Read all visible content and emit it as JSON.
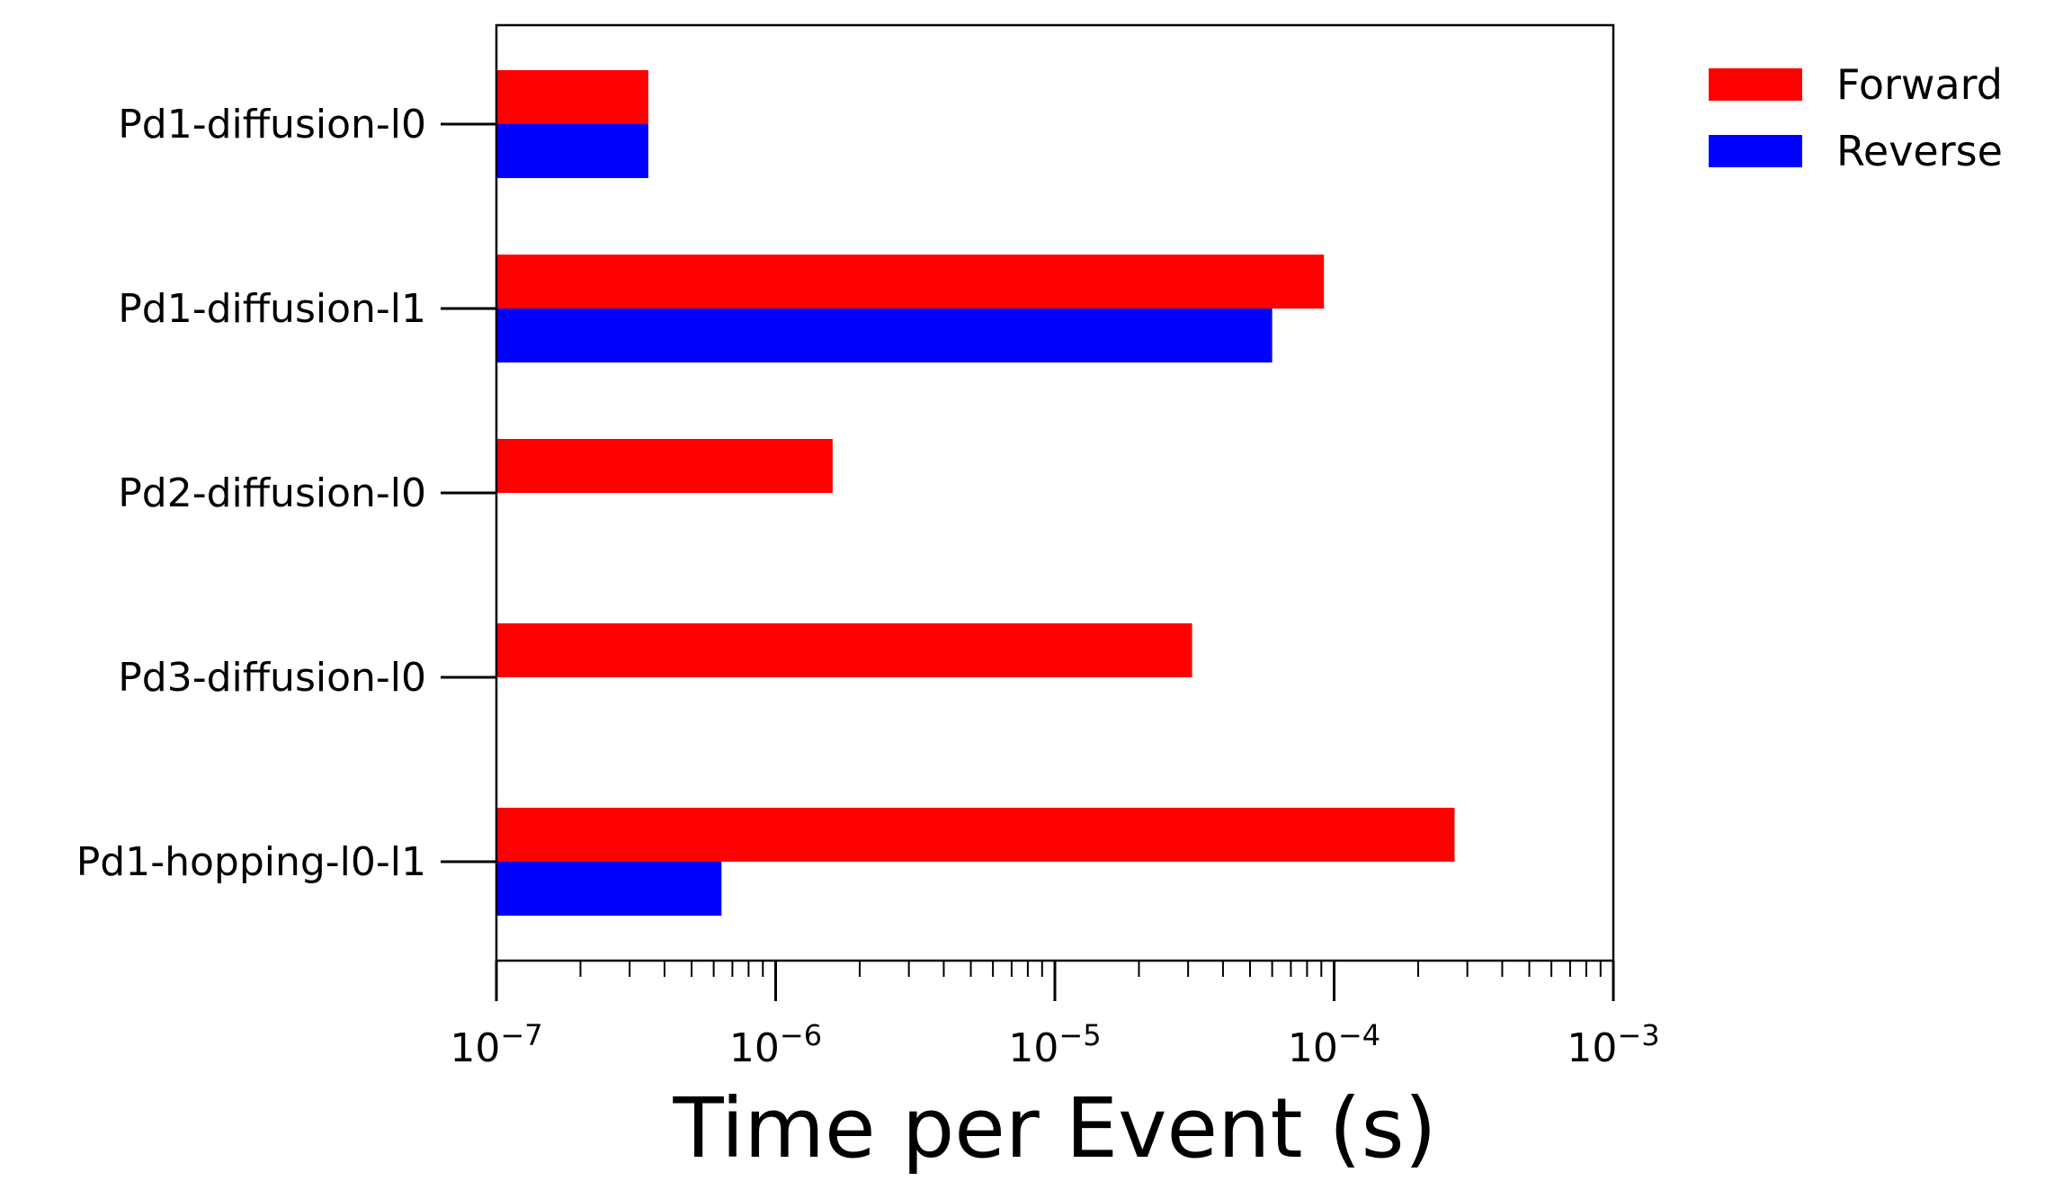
{
  "chart_data": {
    "type": "bar",
    "orientation": "horizontal",
    "xscale": "log",
    "xlim": [
      1e-07,
      0.001
    ],
    "xlabel": "Time per Event (s)",
    "ylabel": "",
    "title": "",
    "grid": false,
    "legend_placement": "top-right-outside",
    "categories": [
      "Pd1-diffusion-l0",
      "Pd1-diffusion-l1",
      "Pd2-diffusion-l0",
      "Pd3-diffusion-l0",
      "Pd1-hopping-l0-l1"
    ],
    "xticks": [
      {
        "value": 1e-07,
        "exp": "−7"
      },
      {
        "value": 1e-06,
        "exp": "−6"
      },
      {
        "value": 1e-05,
        "exp": "−5"
      },
      {
        "value": 0.0001,
        "exp": "−4"
      },
      {
        "value": 0.001,
        "exp": "−3"
      }
    ],
    "tick_base": "10",
    "series": [
      {
        "name": "Forward",
        "color": "#ff0000",
        "values": [
          3.5e-07,
          9.2e-05,
          1.6e-06,
          3.1e-05,
          0.00027
        ]
      },
      {
        "name": "Reverse",
        "color": "#0000ff",
        "values": [
          3.5e-07,
          6e-05,
          null,
          null,
          6.4e-07
        ]
      }
    ]
  }
}
